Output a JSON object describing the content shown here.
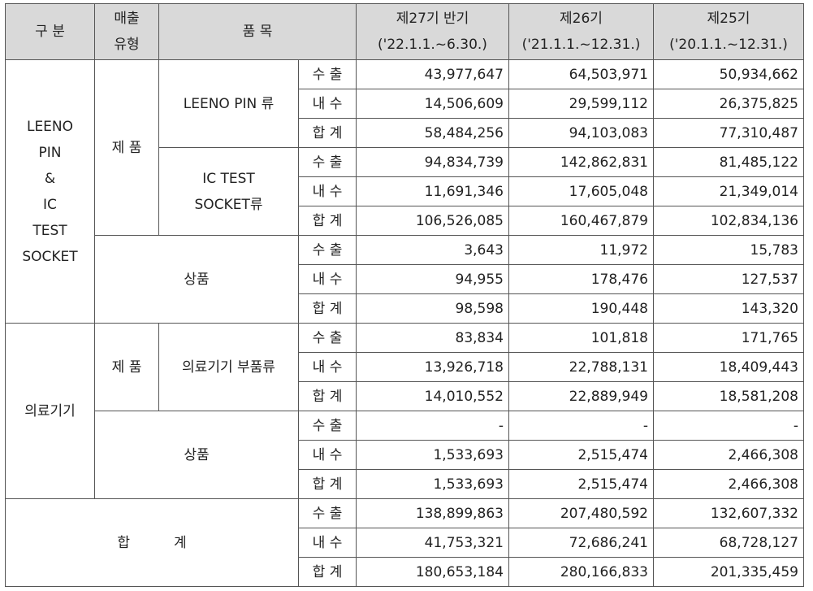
{
  "header": {
    "gubun": "구 분",
    "sales_type_line1": "매출",
    "sales_type_line2": "유형",
    "item": "품 목",
    "p27_line1": "제27기 반기",
    "p27_line2": "('22.1.1.~6.30.)",
    "p26_line1": "제26기",
    "p26_line2": "('21.1.1.~12.31.)",
    "p25_line1": "제25기",
    "p25_line2": "('20.1.1.~12.31.)"
  },
  "labels": {
    "leeno_line1": "LEENO",
    "leeno_line2": "PIN",
    "leeno_line3": "&",
    "leeno_line4": "IC",
    "leeno_line5": "TEST",
    "leeno_line6": "SOCKET",
    "medical": "의료기기",
    "product": "제 품",
    "goods": "상품",
    "leeno_pin": "LEENO PIN 류",
    "ic_line1": "IC TEST",
    "ic_line2": "SOCKET류",
    "medical_parts": "의료기기 부품류",
    "grand_total": "합          계",
    "export": "수 출",
    "domestic": "내 수",
    "subtotal": "합 계"
  },
  "rows": [
    {
      "v27": "43,977,647",
      "v26": "64,503,971",
      "v25": "50,934,662"
    },
    {
      "v27": "14,506,609",
      "v26": "29,599,112",
      "v25": "26,375,825"
    },
    {
      "v27": "58,484,256",
      "v26": "94,103,083",
      "v25": "77,310,487"
    },
    {
      "v27": "94,834,739",
      "v26": "142,862,831",
      "v25": "81,485,122"
    },
    {
      "v27": "11,691,346",
      "v26": "17,605,048",
      "v25": "21,349,014"
    },
    {
      "v27": "106,526,085",
      "v26": "160,467,879",
      "v25": "102,834,136"
    },
    {
      "v27": "3,643",
      "v26": "11,972",
      "v25": "15,783"
    },
    {
      "v27": "94,955",
      "v26": "178,476",
      "v25": "127,537"
    },
    {
      "v27": "98,598",
      "v26": "190,448",
      "v25": "143,320"
    },
    {
      "v27": "83,834",
      "v26": "101,818",
      "v25": "171,765"
    },
    {
      "v27": "13,926,718",
      "v26": "22,788,131",
      "v25": "18,409,443"
    },
    {
      "v27": "14,010,552",
      "v26": "22,889,949",
      "v25": "18,581,208"
    },
    {
      "v27": "-",
      "v26": "-",
      "v25": "-"
    },
    {
      "v27": "1,533,693",
      "v26": "2,515,474",
      "v25": "2,466,308"
    },
    {
      "v27": "1,533,693",
      "v26": "2,515,474",
      "v25": "2,466,308"
    },
    {
      "v27": "138,899,863",
      "v26": "207,480,592",
      "v25": "132,607,332"
    },
    {
      "v27": "41,753,321",
      "v26": "72,686,241",
      "v25": "68,728,127"
    },
    {
      "v27": "180,653,184",
      "v26": "280,166,833",
      "v25": "201,335,459"
    }
  ]
}
